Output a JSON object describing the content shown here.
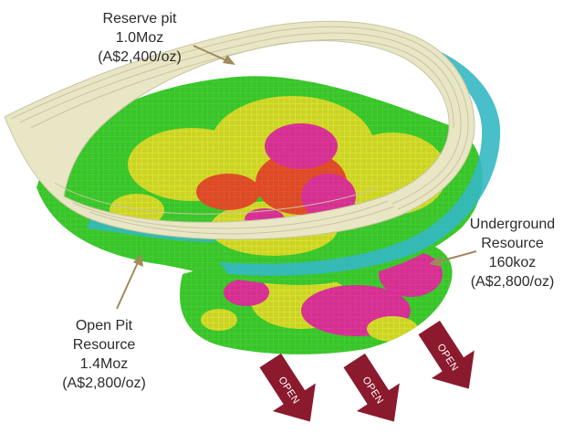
{
  "labels": {
    "reserve_pit": {
      "line1": "Reserve pit",
      "line2": "1.0Moz",
      "line3": "(A$2,400/oz)"
    },
    "underground": {
      "line1": "Underground",
      "line2": "Resource",
      "line3": "160koz",
      "line4": "(A$2,800/oz)"
    },
    "open_pit": {
      "line1": "Open Pit",
      "line2": "Resource",
      "line3": "1.4Moz",
      "line4": "(A$2,800/oz)"
    }
  },
  "open_arrows": [
    {
      "label": "OPEN"
    },
    {
      "label": "OPEN"
    },
    {
      "label": "OPEN"
    }
  ],
  "colors": {
    "arrow_fill": "#8b1a2e",
    "leader_line": "#a08a5c",
    "pit_shell": "#e8e6c4",
    "pit_bench_lines": "#c9c5a2",
    "water": "#35b8c4",
    "grade_low": "#3fcf2f",
    "grade_mid": "#d9e02a",
    "grade_high": "#e8502a",
    "grade_very_high": "#e0349a"
  }
}
